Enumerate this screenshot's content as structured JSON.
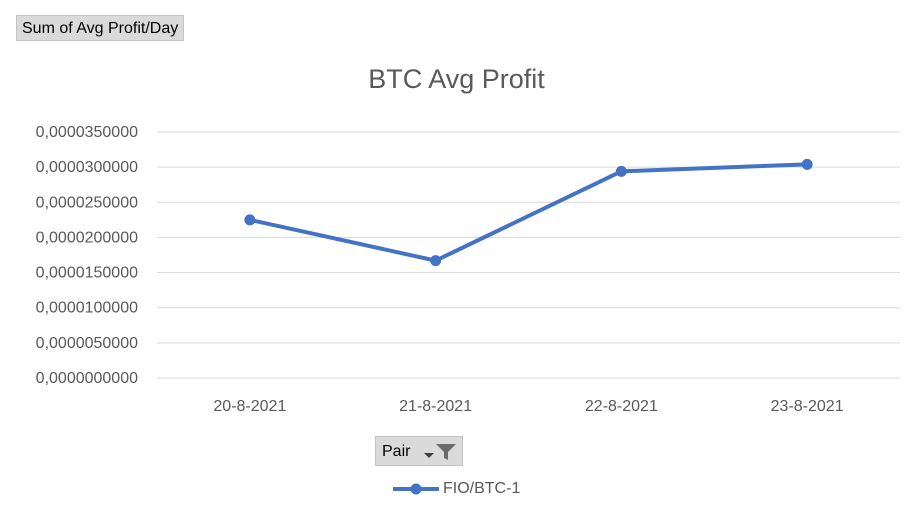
{
  "field_button": {
    "label": "Sum of Avg Profit/Day"
  },
  "pair_button": {
    "label": "Pair"
  },
  "chart_data": {
    "type": "line",
    "title": "BTC Avg Profit",
    "categories": [
      "20-8-2021",
      "21-8-2021",
      "22-8-2021",
      "23-8-2021"
    ],
    "series": [
      {
        "name": "FIO/BTC-1",
        "values": [
          2.25e-05,
          1.67e-05,
          2.94e-05,
          3.04e-05
        ],
        "color": "#4472C4"
      }
    ],
    "yticks": [
      "0,0000000000",
      "0,0000050000",
      "0,0000100000",
      "0,0000150000",
      "0,0000200000",
      "0,0000250000",
      "0,0000300000",
      "0,0000350000"
    ],
    "ylim": [
      0,
      3.5e-05
    ],
    "grid": true,
    "legend_position": "bottom"
  }
}
